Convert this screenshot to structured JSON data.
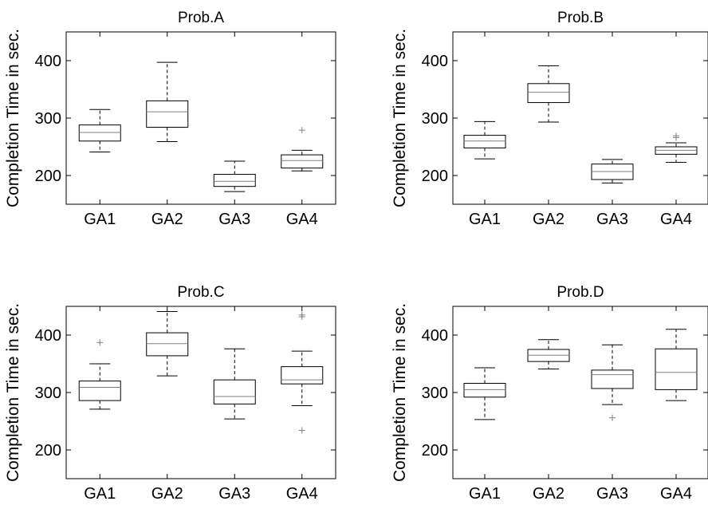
{
  "figure": {
    "background": "#ffffff"
  },
  "style": {
    "axis_color": "#000000",
    "box_color": "#000000",
    "median_color": "#808080",
    "outlier_color": "#808080"
  },
  "chart_data": [
    {
      "type": "box",
      "title": "Prob.A",
      "xlabel": "",
      "ylabel": "Completion Time in sec.",
      "ylim": [
        150,
        450
      ],
      "yticks": [
        200,
        300,
        400
      ],
      "grid": false,
      "categories": [
        "GA1",
        "GA2",
        "GA3",
        "GA4"
      ],
      "boxes": [
        {
          "whisker_low": 241,
          "q1": 260,
          "median": 275,
          "q3": 288,
          "whisker_high": 315,
          "outliers": []
        },
        {
          "whisker_low": 259,
          "q1": 284,
          "median": 311,
          "q3": 330,
          "whisker_high": 397,
          "outliers": []
        },
        {
          "whisker_low": 172,
          "q1": 181,
          "median": 190,
          "q3": 202,
          "whisker_high": 225,
          "outliers": []
        },
        {
          "whisker_low": 208,
          "q1": 213,
          "median": 226,
          "q3": 236,
          "whisker_high": 244,
          "outliers": [
            279
          ]
        }
      ]
    },
    {
      "type": "box",
      "title": "Prob.B",
      "xlabel": "",
      "ylabel": "Completion Time in sec.",
      "ylim": [
        150,
        450
      ],
      "yticks": [
        200,
        300,
        400
      ],
      "grid": false,
      "categories": [
        "GA1",
        "GA2",
        "GA3",
        "GA4"
      ],
      "boxes": [
        {
          "whisker_low": 229,
          "q1": 248,
          "median": 260,
          "q3": 270,
          "whisker_high": 294,
          "outliers": []
        },
        {
          "whisker_low": 293,
          "q1": 327,
          "median": 345,
          "q3": 360,
          "whisker_high": 391,
          "outliers": []
        },
        {
          "whisker_low": 187,
          "q1": 193,
          "median": 207,
          "q3": 220,
          "whisker_high": 228,
          "outliers": []
        },
        {
          "whisker_low": 223,
          "q1": 237,
          "median": 244,
          "q3": 250,
          "whisker_high": 257,
          "outliers": [
            266,
            269
          ]
        }
      ]
    },
    {
      "type": "box",
      "title": "Prob.C",
      "xlabel": "",
      "ylabel": "Completion Time in sec.",
      "ylim": [
        150,
        450
      ],
      "yticks": [
        200,
        300,
        400
      ],
      "grid": false,
      "categories": [
        "GA1",
        "GA2",
        "GA3",
        "GA4"
      ],
      "boxes": [
        {
          "whisker_low": 271,
          "q1": 286,
          "median": 309,
          "q3": 320,
          "whisker_high": 350,
          "outliers": [
            387
          ]
        },
        {
          "whisker_low": 329,
          "q1": 364,
          "median": 385,
          "q3": 404,
          "whisker_high": 441,
          "outliers": []
        },
        {
          "whisker_low": 254,
          "q1": 280,
          "median": 293,
          "q3": 322,
          "whisker_high": 376,
          "outliers": []
        },
        {
          "whisker_low": 277,
          "q1": 315,
          "median": 322,
          "q3": 345,
          "whisker_high": 372,
          "outliers": [
            432,
            435,
            234
          ]
        }
      ]
    },
    {
      "type": "box",
      "title": "Prob.D",
      "xlabel": "",
      "ylabel": "Completion Time in sec.",
      "ylim": [
        150,
        450
      ],
      "yticks": [
        200,
        300,
        400
      ],
      "grid": false,
      "categories": [
        "GA1",
        "GA2",
        "GA3",
        "GA4"
      ],
      "boxes": [
        {
          "whisker_low": 253,
          "q1": 292,
          "median": 305,
          "q3": 316,
          "whisker_high": 343,
          "outliers": []
        },
        {
          "whisker_low": 341,
          "q1": 354,
          "median": 365,
          "q3": 375,
          "whisker_high": 392,
          "outliers": []
        },
        {
          "whisker_low": 279,
          "q1": 307,
          "median": 331,
          "q3": 339,
          "whisker_high": 383,
          "outliers": [
            256
          ]
        },
        {
          "whisker_low": 286,
          "q1": 305,
          "median": 335,
          "q3": 376,
          "whisker_high": 410,
          "outliers": []
        }
      ]
    }
  ]
}
